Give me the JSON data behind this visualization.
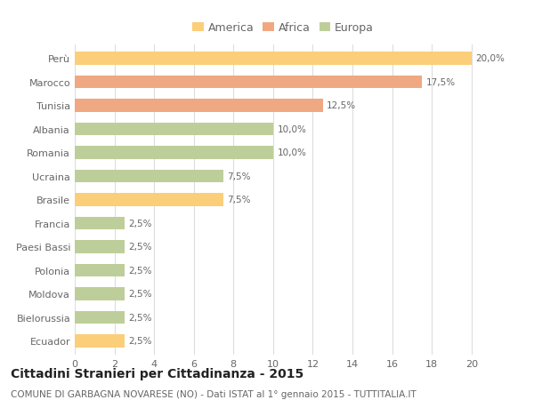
{
  "categories": [
    "Perù",
    "Marocco",
    "Tunisia",
    "Albania",
    "Romania",
    "Ucraina",
    "Brasile",
    "Francia",
    "Paesi Bassi",
    "Polonia",
    "Moldova",
    "Bielorussia",
    "Ecuador"
  ],
  "values": [
    20.0,
    17.5,
    12.5,
    10.0,
    10.0,
    7.5,
    7.5,
    2.5,
    2.5,
    2.5,
    2.5,
    2.5,
    2.5
  ],
  "labels": [
    "20,0%",
    "17,5%",
    "12,5%",
    "10,0%",
    "10,0%",
    "7,5%",
    "7,5%",
    "2,5%",
    "2,5%",
    "2,5%",
    "2,5%",
    "2,5%",
    "2,5%"
  ],
  "colors": [
    "#FBCE7A",
    "#F0A882",
    "#F0A882",
    "#BECE9A",
    "#BECE9A",
    "#BECE9A",
    "#FBCE7A",
    "#BECE9A",
    "#BECE9A",
    "#BECE9A",
    "#BECE9A",
    "#BECE9A",
    "#FBCE7A"
  ],
  "legend_labels": [
    "America",
    "Africa",
    "Europa"
  ],
  "legend_colors": [
    "#FBCE7A",
    "#F0A882",
    "#BECE9A"
  ],
  "title": "Cittadini Stranieri per Cittadinanza - 2015",
  "subtitle": "COMUNE DI GARBAGNA NOVARESE (NO) - Dati ISTAT al 1° gennaio 2015 - TUTTITALIA.IT",
  "xlim": [
    0,
    21
  ],
  "xticks": [
    0,
    2,
    4,
    6,
    8,
    10,
    12,
    14,
    16,
    18,
    20
  ],
  "background_color": "#FFFFFF",
  "grid_color": "#DDDDDD",
  "bar_height": 0.55,
  "label_fontsize": 7.5,
  "title_fontsize": 10,
  "subtitle_fontsize": 7.5,
  "tick_fontsize": 8,
  "legend_fontsize": 9,
  "text_color": "#666666",
  "title_color": "#222222"
}
